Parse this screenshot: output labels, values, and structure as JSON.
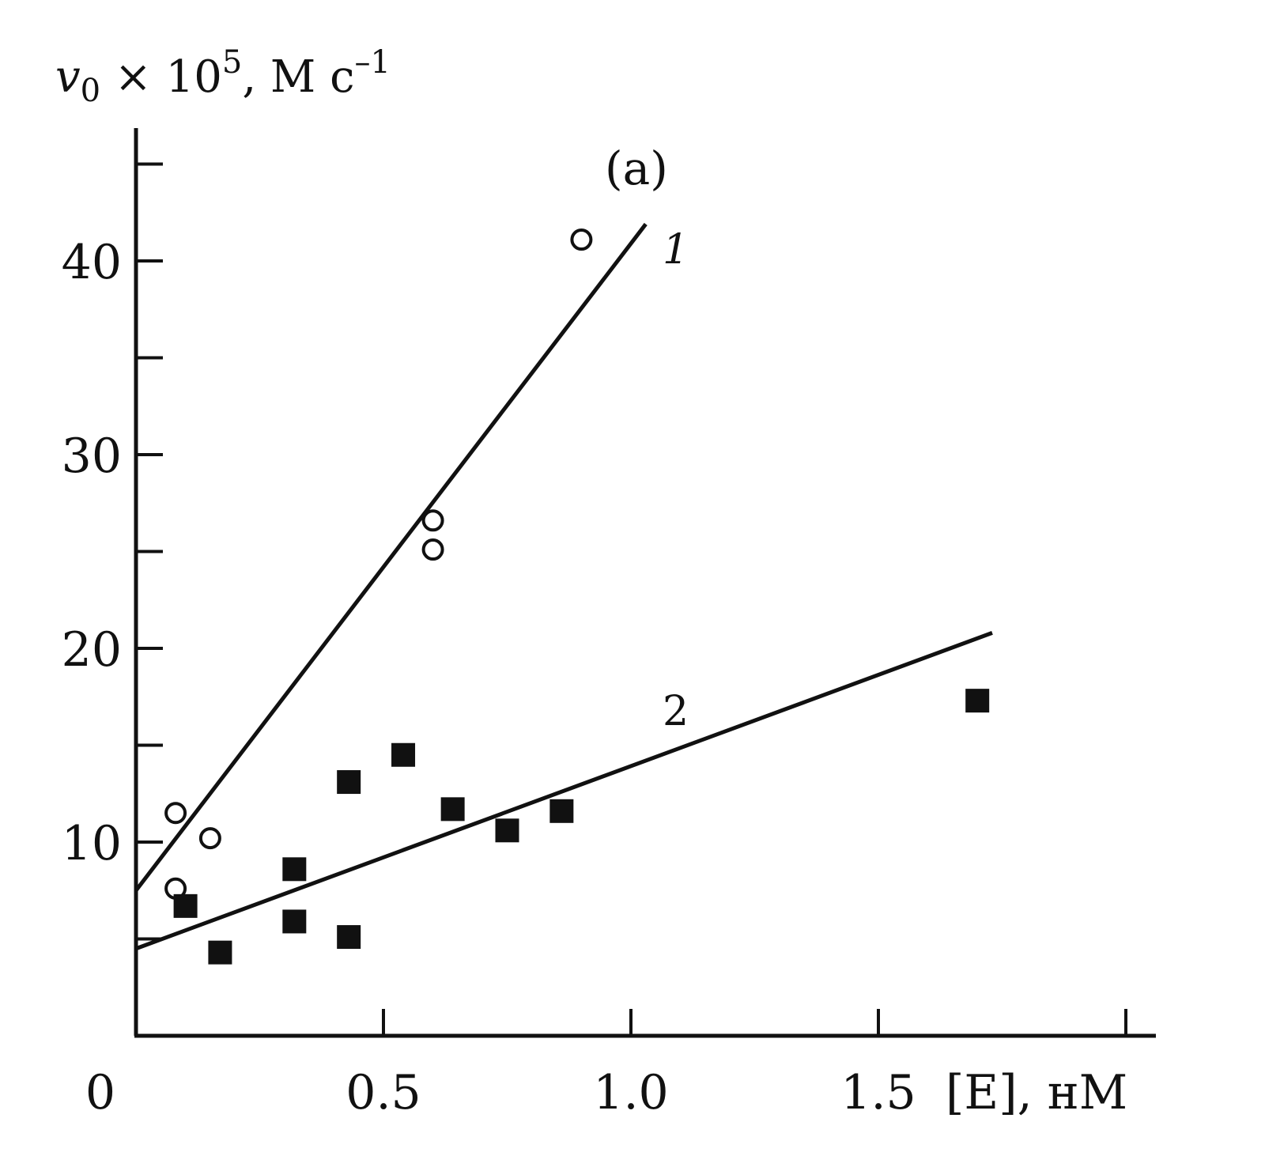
{
  "chart_data": {
    "type": "scatter",
    "panel_label": "(a)",
    "ylabel": {
      "base": "v",
      "sub": "0",
      "mid": " × 10",
      "sup": "5",
      "unit": ", M c",
      "unit_sup": "–1"
    },
    "xlabel": "[E], нM",
    "xlim": [
      0,
      2.0
    ],
    "ylim": [
      0,
      45
    ],
    "x_ticks": [
      0,
      0.5,
      1.0,
      1.5,
      2.0
    ],
    "x_tick_labels": [
      "0",
      "0.5",
      "1.0",
      "1.5",
      ""
    ],
    "y_ticks": [
      5,
      10,
      15,
      20,
      25,
      30,
      35,
      40,
      45
    ],
    "y_tick_labels": [
      "",
      "10",
      "",
      "20",
      "",
      "30",
      "",
      "40",
      ""
    ],
    "grid": false,
    "legend": "none",
    "series": [
      {
        "label": "1",
        "marker": "open-circle",
        "points": [
          {
            "x": 0.08,
            "y": 11.5
          },
          {
            "x": 0.08,
            "y": 7.6
          },
          {
            "x": 0.15,
            "y": 10.2
          },
          {
            "x": 0.6,
            "y": 26.6
          },
          {
            "x": 0.6,
            "y": 25.1
          },
          {
            "x": 0.9,
            "y": 41.1
          }
        ],
        "fit_line": {
          "x": [
            0,
            1.03
          ],
          "y": [
            7.5,
            41.9
          ]
        }
      },
      {
        "label": "2",
        "marker": "filled-square",
        "points": [
          {
            "x": 0.1,
            "y": 6.7
          },
          {
            "x": 0.17,
            "y": 4.3
          },
          {
            "x": 0.32,
            "y": 8.6
          },
          {
            "x": 0.32,
            "y": 5.9
          },
          {
            "x": 0.43,
            "y": 13.1
          },
          {
            "x": 0.43,
            "y": 5.1
          },
          {
            "x": 0.54,
            "y": 14.5
          },
          {
            "x": 0.64,
            "y": 11.7
          },
          {
            "x": 0.75,
            "y": 10.6
          },
          {
            "x": 0.86,
            "y": 11.6
          },
          {
            "x": 1.7,
            "y": 17.3
          }
        ],
        "fit_line": {
          "x": [
            0,
            1.73
          ],
          "y": [
            4.5,
            20.8
          ]
        }
      }
    ]
  }
}
